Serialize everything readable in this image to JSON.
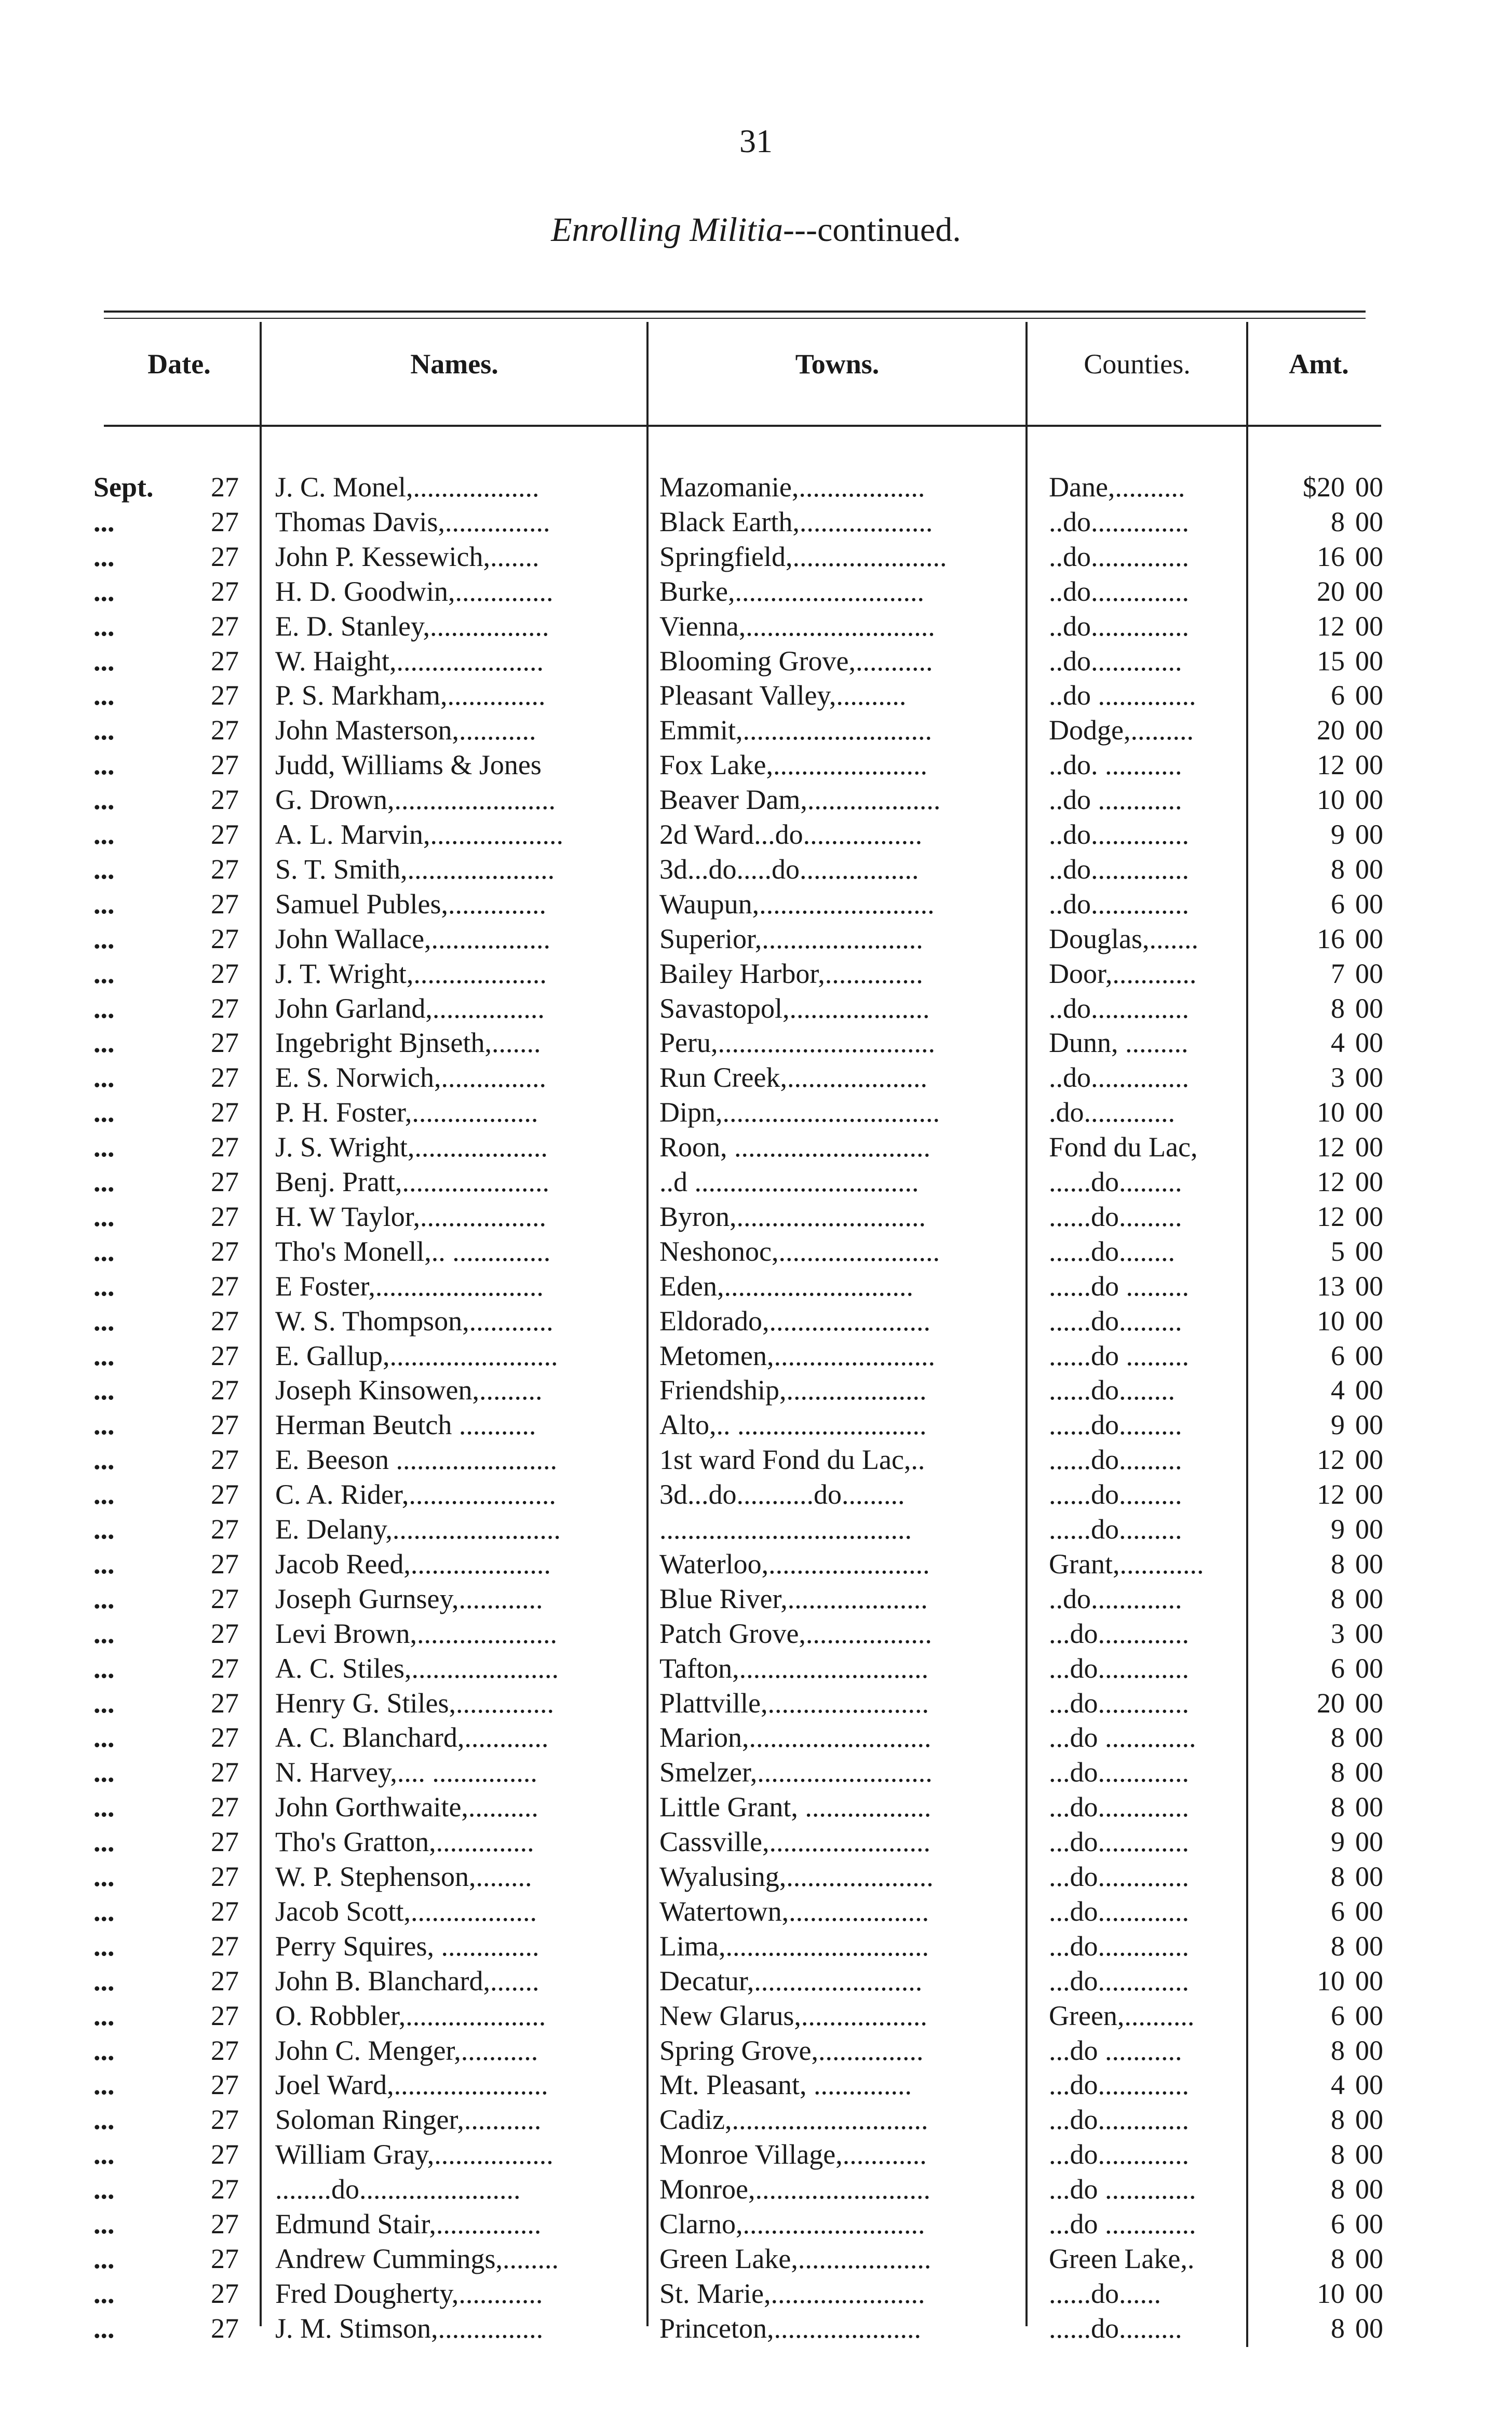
{
  "page_number": "31",
  "title": {
    "italic": "Enrolling Militia",
    "rest": "---continued."
  },
  "headers": {
    "date": "Date.",
    "names": "Names.",
    "towns": "Towns.",
    "counties": "Counties.",
    "amt": "Amt."
  },
  "rows": [
    [
      "Sept.",
      "27",
      "J. C. Monel,..................",
      "Mazomanie,..................",
      "Dane,..........",
      "$20",
      "00"
    ],
    [
      "...",
      "27",
      "Thomas Davis,...............",
      "Black Earth,...................",
      "..do..............",
      "8",
      "00"
    ],
    [
      "...",
      "27",
      "John P. Kessewich,.......",
      "Springfield,......................",
      "..do..............",
      "16",
      "00"
    ],
    [
      "...",
      "27",
      "H. D. Goodwin,..............",
      "Burke,...........................",
      "..do..............",
      "20",
      "00"
    ],
    [
      "...",
      "27",
      "E. D. Stanley,.................",
      "Vienna,...........................",
      "..do..............",
      "12",
      "00"
    ],
    [
      "...",
      "27",
      "W. Haight,.....................",
      "Blooming Grove,...........",
      "..do.............",
      "15",
      "00"
    ],
    [
      "...",
      "27",
      "P. S. Markham,..............",
      "Pleasant Valley,..........",
      "..do ..............",
      "6",
      "00"
    ],
    [
      "...",
      "27",
      "John Masterson,...........",
      "Emmit,...........................",
      "Dodge,.........",
      "20",
      "00"
    ],
    [
      "...",
      "27",
      "Judd, Williams & Jones",
      "Fox Lake,......................",
      "..do. ...........",
      "12",
      "00"
    ],
    [
      "...",
      "27",
      "G. Drown,.......................",
      "Beaver Dam,...................",
      "..do ............",
      "10",
      "00"
    ],
    [
      "...",
      "27",
      "A. L. Marvin,...................",
      "2d Ward...do.................",
      "..do..............",
      "9",
      "00"
    ],
    [
      "...",
      "27",
      "S. T. Smith,.....................",
      "3d...do.....do.................",
      "..do..............",
      "8",
      "00"
    ],
    [
      "...",
      "27",
      "Samuel Publes,..............",
      "Waupun,.........................",
      "..do..............",
      "6",
      "00"
    ],
    [
      "...",
      "27",
      "John Wallace,.................",
      "Superior,.......................",
      "Douglas,.......",
      "16",
      "00"
    ],
    [
      "...",
      "27",
      "J. T. Wright,...................",
      "Bailey Harbor,..............",
      "Door,............",
      "7",
      "00"
    ],
    [
      "...",
      "27",
      "John Garland,................",
      "Savastopol,....................",
      "..do..............",
      "8",
      "00"
    ],
    [
      "...",
      "27",
      "Ingebright Bjnseth,.......",
      "Peru,...............................",
      "Dunn, .........",
      "4",
      "00"
    ],
    [
      "...",
      "27",
      "E. S. Norwich,...............",
      "Run Creek,....................",
      "..do..............",
      "3",
      "00"
    ],
    [
      "...",
      "27",
      "P. H. Foster,..................",
      "Dipn,...............................",
      ".do.............",
      "10",
      "00"
    ],
    [
      "...",
      "27",
      "J. S. Wright,...................",
      "Roon, ............................",
      "Fond du Lac,",
      "12",
      "00"
    ],
    [
      "...",
      "27",
      "Benj. Pratt,.....................",
      "..d ................................",
      "......do.........",
      "12",
      "00"
    ],
    [
      "...",
      "27",
      "H. W Taylor,..................",
      "Byron,...........................",
      "......do.........",
      "12",
      "00"
    ],
    [
      "...",
      "27",
      "Tho's Monell,.. ..............",
      "Neshonoc,.......................",
      "......do........",
      "5",
      "00"
    ],
    [
      "...",
      "27",
      "E Foster,........................",
      "Eden,...........................",
      "......do .........",
      "13",
      "00"
    ],
    [
      "...",
      "27",
      "W. S. Thompson,............",
      "Eldorado,.......................",
      "......do.........",
      "10",
      "00"
    ],
    [
      "...",
      "27",
      "E. Gallup,........................",
      "Metomen,.......................",
      "......do .........",
      "6",
      "00"
    ],
    [
      "...",
      "27",
      "Joseph Kinsowen,.........",
      "Friendship,....................",
      "......do........",
      "4",
      "00"
    ],
    [
      "...",
      "27",
      "Herman Beutch ...........",
      "Alto,.. ...........................",
      "......do.........",
      "9",
      "00"
    ],
    [
      "...",
      "27",
      "E. Beeson .......................",
      "1st ward Fond du Lac,..",
      "......do.........",
      "12",
      "00"
    ],
    [
      "...",
      "27",
      "C. A. Rider,.....................",
      "3d...do...........do.........",
      "......do.........",
      "12",
      "00"
    ],
    [
      "...",
      "27",
      "E. Delany,........................",
      "....................................",
      "......do.........",
      "9",
      "00"
    ],
    [
      "...",
      "27",
      "Jacob Reed,....................",
      "Waterloo,.......................",
      "Grant,............",
      "8",
      "00"
    ],
    [
      "...",
      "27",
      "Joseph Gurnsey,............",
      "Blue River,....................",
      "..do.............",
      "8",
      "00"
    ],
    [
      "...",
      "27",
      "Levi Brown,....................",
      "Patch Grove,..................",
      "...do.............",
      "3",
      "00"
    ],
    [
      "...",
      "27",
      "A. C. Stiles,.....................",
      "Tafton,...........................",
      "...do.............",
      "6",
      "00"
    ],
    [
      "...",
      "27",
      "Henry G. Stiles,..............",
      "Plattville,.......................",
      "...do.............",
      "20",
      "00"
    ],
    [
      "...",
      "27",
      "A. C. Blanchard,............",
      "Marion,..........................",
      "...do .............",
      "8",
      "00"
    ],
    [
      "...",
      "27",
      "N. Harvey,.... ...............",
      "Smelzer,.........................",
      "...do.............",
      "8",
      "00"
    ],
    [
      "...",
      "27",
      "John Gorthwaite,..........",
      "Little Grant, ..................",
      "...do.............",
      "8",
      "00"
    ],
    [
      "...",
      "27",
      "Tho's Gratton,..............",
      "Cassville,.......................",
      "...do.............",
      "9",
      "00"
    ],
    [
      "...",
      "27",
      "W. P. Stephenson,........",
      "Wyalusing,.....................",
      "...do.............",
      "8",
      "00"
    ],
    [
      "...",
      "27",
      "Jacob Scott,..................",
      "Watertown,....................",
      "...do.............",
      "6",
      "00"
    ],
    [
      "...",
      "27",
      "Perry Squires, ..............",
      "Lima,.............................",
      "...do.............",
      "8",
      "00"
    ],
    [
      "...",
      "27",
      "John B. Blanchard,.......",
      "Decatur,........................",
      "...do.............",
      "10",
      "00"
    ],
    [
      "...",
      "27",
      "O. Robbler,....................",
      "New Glarus,..................",
      "Green,..........",
      "6",
      "00"
    ],
    [
      "...",
      "27",
      "John C. Menger,...........",
      "Spring Grove,...............",
      "...do ...........",
      "8",
      "00"
    ],
    [
      "...",
      "27",
      "Joel Ward,......................",
      "Mt. Pleasant, ..............",
      "...do.............",
      "4",
      "00"
    ],
    [
      "...",
      "27",
      "Soloman Ringer,...........",
      "Cadiz,............................",
      "...do.............",
      "8",
      "00"
    ],
    [
      "...",
      "27",
      "William Gray,.................",
      "Monroe Village,............",
      "...do.............",
      "8",
      "00"
    ],
    [
      "...",
      "27",
      "........do.......................",
      "Monroe,.........................",
      "...do .............",
      "8",
      "00"
    ],
    [
      "...",
      "27",
      "Edmund Stair,...............",
      "Clarno,..........................",
      "...do .............",
      "6",
      "00"
    ],
    [
      "...",
      "27",
      "Andrew Cummings,........",
      "Green Lake,...................",
      "Green Lake,.",
      "8",
      "00"
    ],
    [
      "...",
      "27",
      "Fred Dougherty,............",
      "St. Marie,......................",
      "......do......",
      "10",
      "00"
    ],
    [
      "...",
      "27",
      "J. M. Stimson,...............",
      "Princeton,.....................",
      "......do.........",
      "8",
      "00"
    ]
  ]
}
